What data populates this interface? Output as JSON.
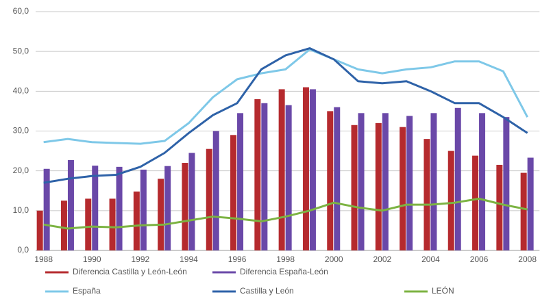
{
  "chart_data": {
    "type": "combo",
    "categories": [
      "1988",
      null,
      "1990",
      null,
      "1992",
      null,
      "1994",
      null,
      "1996",
      null,
      "1998",
      null,
      "2000",
      null,
      "2002",
      null,
      "2004",
      null,
      "2006",
      null,
      "2008"
    ],
    "series": [
      {
        "name": "Diferencia Castilla y León-León",
        "type": "bar",
        "color": "#b52a2e",
        "values": [
          10,
          12.5,
          13,
          13,
          14.8,
          18,
          22,
          25.5,
          29,
          38,
          40.5,
          41,
          35,
          31.5,
          32,
          31,
          28,
          25,
          23.8,
          21.5,
          19.5
        ]
      },
      {
        "name": "Diferencia España-León",
        "type": "bar",
        "color": "#6a48a8",
        "values": [
          20.5,
          22.7,
          21.3,
          21,
          20.3,
          21.2,
          24.5,
          30,
          34.5,
          37,
          36.5,
          40.5,
          36,
          34.5,
          34.5,
          33.8,
          34.5,
          35.8,
          34.5,
          33.5,
          23.3
        ]
      },
      {
        "name": "España",
        "type": "line",
        "color": "#7ec8e8",
        "values": [
          27.2,
          28,
          27.2,
          27,
          26.8,
          27.5,
          32,
          38.5,
          43,
          44.5,
          45.5,
          50.5,
          48,
          45.5,
          44.5,
          45.5,
          46,
          47.5,
          47.5,
          45,
          33.5
        ]
      },
      {
        "name": "Castilla y León",
        "type": "line",
        "color": "#2e62a8",
        "values": [
          17,
          18,
          18.7,
          19,
          21,
          24.5,
          29.5,
          34,
          37,
          45.5,
          49,
          50.8,
          48,
          42.5,
          42,
          42.5,
          40,
          37,
          37,
          33.5,
          29.5
        ]
      },
      {
        "name": "LEÓN",
        "type": "line",
        "color": "#7cb342",
        "values": [
          6.5,
          5.5,
          6,
          5.8,
          6.3,
          6.5,
          7.5,
          8.5,
          8,
          7.3,
          8.5,
          10,
          12,
          10.8,
          10,
          11.5,
          11.5,
          12,
          13,
          11.5,
          10.3
        ]
      }
    ],
    "ylim": [
      0,
      60
    ],
    "yticks": [
      {
        "value": 0,
        "label": "0,0"
      },
      {
        "value": 10,
        "label": "10,0"
      },
      {
        "value": 20,
        "label": "20,0"
      },
      {
        "value": 30,
        "label": "30,0"
      },
      {
        "value": 40,
        "label": "40,0"
      },
      {
        "value": 50,
        "label": "50,0"
      },
      {
        "value": 60,
        "label": "60,0"
      }
    ],
    "grid": true,
    "legend": "bottom"
  }
}
